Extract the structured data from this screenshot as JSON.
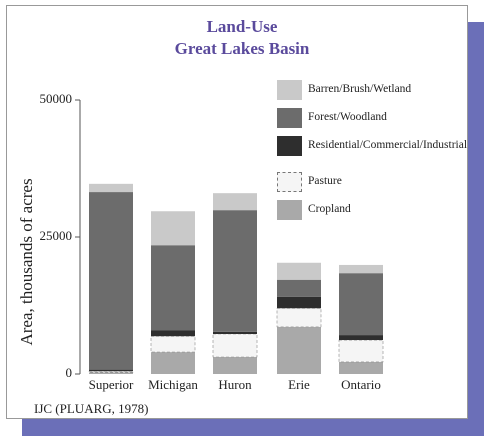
{
  "chart_data": {
    "type": "stacked_bar",
    "title": "Land-Use",
    "subtitle": "Great Lakes Basin",
    "y_label": "Area, thousands of acres",
    "source": "IJC (PLUARG, 1978)",
    "categories": [
      "Superior",
      "Michigan",
      "Huron",
      "Erie",
      "Ontario"
    ],
    "series": [
      {
        "name": "Cropland",
        "color": "#a9a9a9",
        "values": [
          300,
          4000,
          3100,
          8600,
          2200
        ]
      },
      {
        "name": "Pasture",
        "color": "#f5f5f5",
        "values": [
          200,
          2900,
          4200,
          3400,
          4000
        ]
      },
      {
        "name": "Residential/Commercial/Industrial",
        "color": "#2e2e2e",
        "values": [
          300,
          1100,
          400,
          2100,
          900
        ]
      },
      {
        "name": "Forest/Woodland",
        "color": "#6c6c6c",
        "values": [
          32400,
          15500,
          22200,
          3100,
          11300
        ]
      },
      {
        "name": "Barren/Brush/Wetland",
        "color": "#c9c9c9",
        "values": [
          1500,
          6200,
          3100,
          3100,
          1500
        ]
      }
    ],
    "ylim": [
      0,
      50000
    ],
    "yticks": [
      0,
      25000,
      50000
    ],
    "legend": "top-right"
  }
}
